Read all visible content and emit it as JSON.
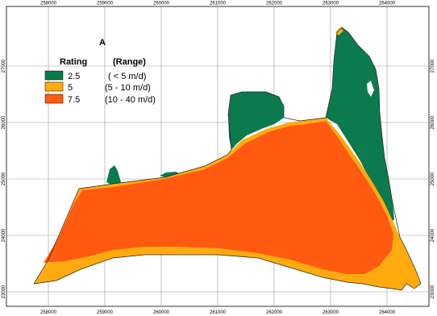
{
  "panel_label": "A",
  "legend": {
    "header_rating": "Rating",
    "header_range": "(Range)",
    "items": [
      {
        "rating": "2.5",
        "range": "( < 5 m/d)",
        "color": "#0b7a4f"
      },
      {
        "rating": "5",
        "range": "(5 - 10 m/d)",
        "color": "#ffab10"
      },
      {
        "rating": "7.5",
        "range": "(10 - 40 m/d)",
        "color": "#ff5a0f"
      }
    ]
  },
  "x_ticks": [
    "258000",
    "259000",
    "260000",
    "261000",
    "262000",
    "263000",
    "264000"
  ],
  "y_ticks": [
    "27000",
    "26000",
    "25000",
    "24000",
    "23000"
  ],
  "colors": {
    "grid": "#9a9a9a",
    "frame": "#000000",
    "outline": "#222222"
  }
}
